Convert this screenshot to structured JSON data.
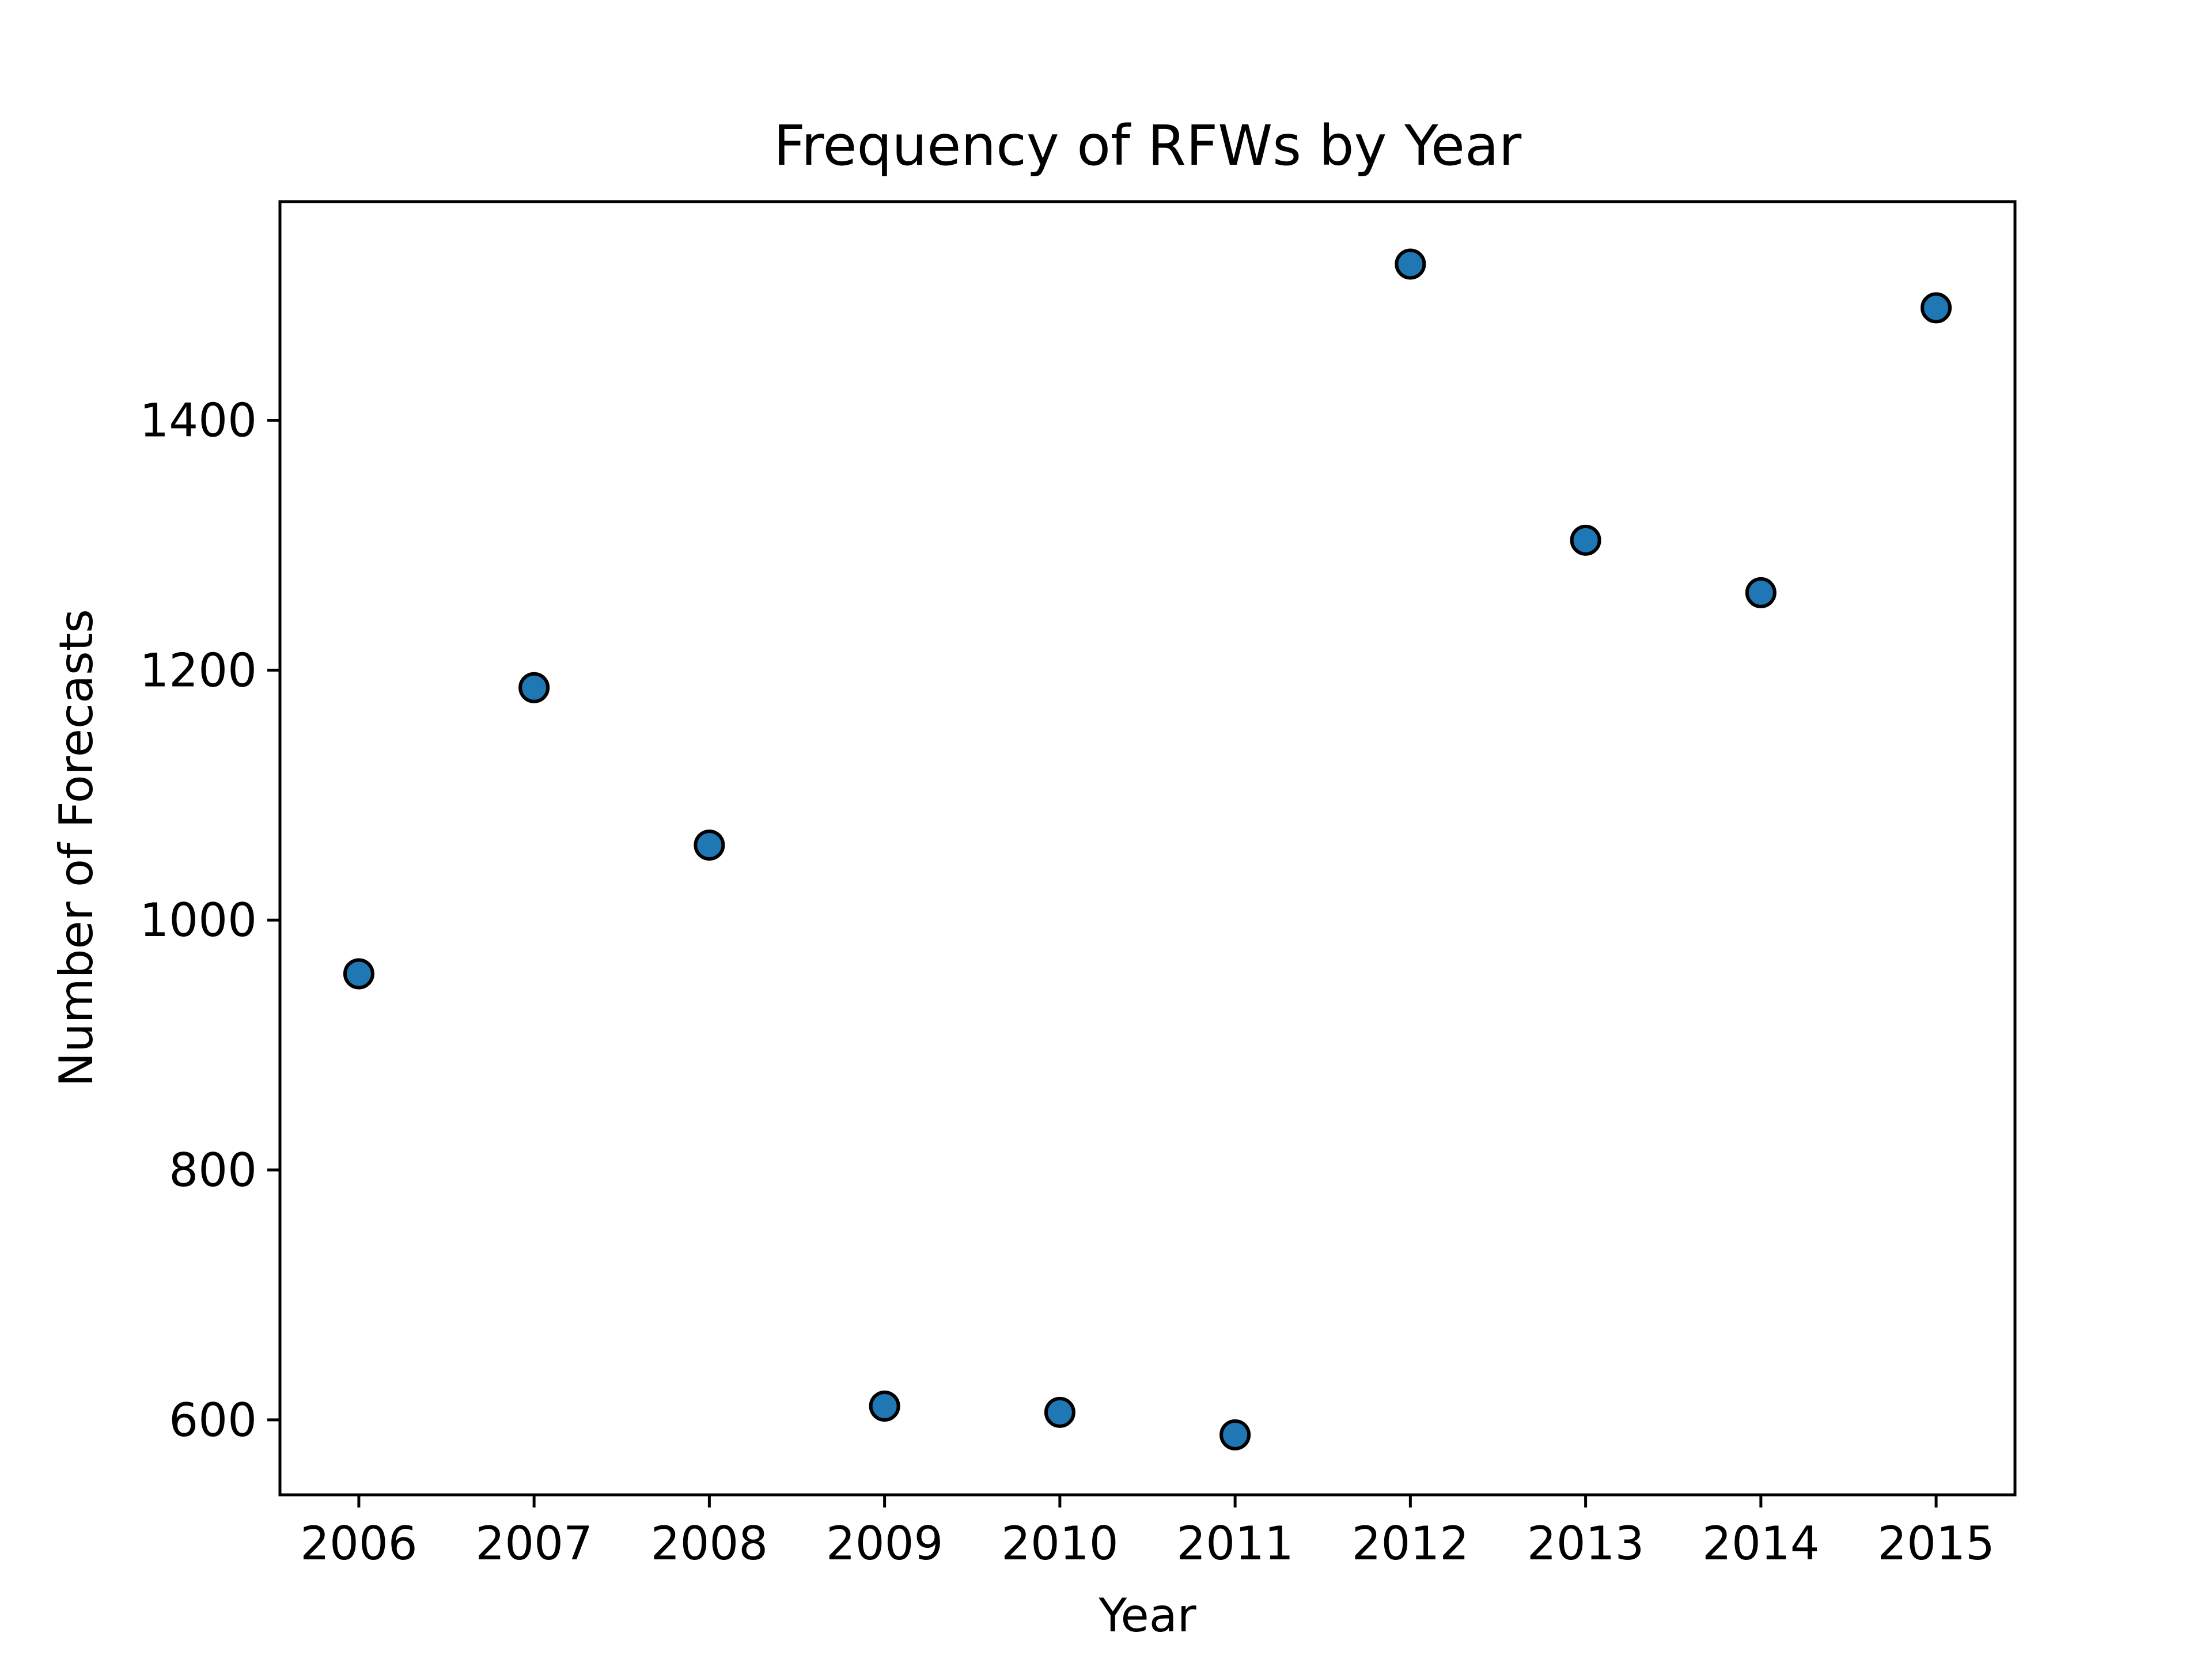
{
  "chart_data": {
    "type": "scatter",
    "title": "Frequency of RFWs by Year",
    "xlabel": "Year",
    "ylabel": "Number of Forecasts",
    "x": [
      2006,
      2007,
      2008,
      2009,
      2010,
      2011,
      2012,
      2013,
      2014,
      2015
    ],
    "y": [
      957,
      1186,
      1060,
      611,
      606,
      588,
      1525,
      1304,
      1262,
      1490
    ],
    "xlim": [
      2005.55,
      2015.45
    ],
    "ylim": [
      540,
      1575
    ],
    "x_ticks": [
      2006,
      2007,
      2008,
      2009,
      2010,
      2011,
      2012,
      2013,
      2014,
      2015
    ],
    "y_ticks": [
      600,
      800,
      1000,
      1200,
      1400
    ],
    "grid": false,
    "marker_color": "#1f77b4",
    "marker_edge_color": "#000000"
  }
}
